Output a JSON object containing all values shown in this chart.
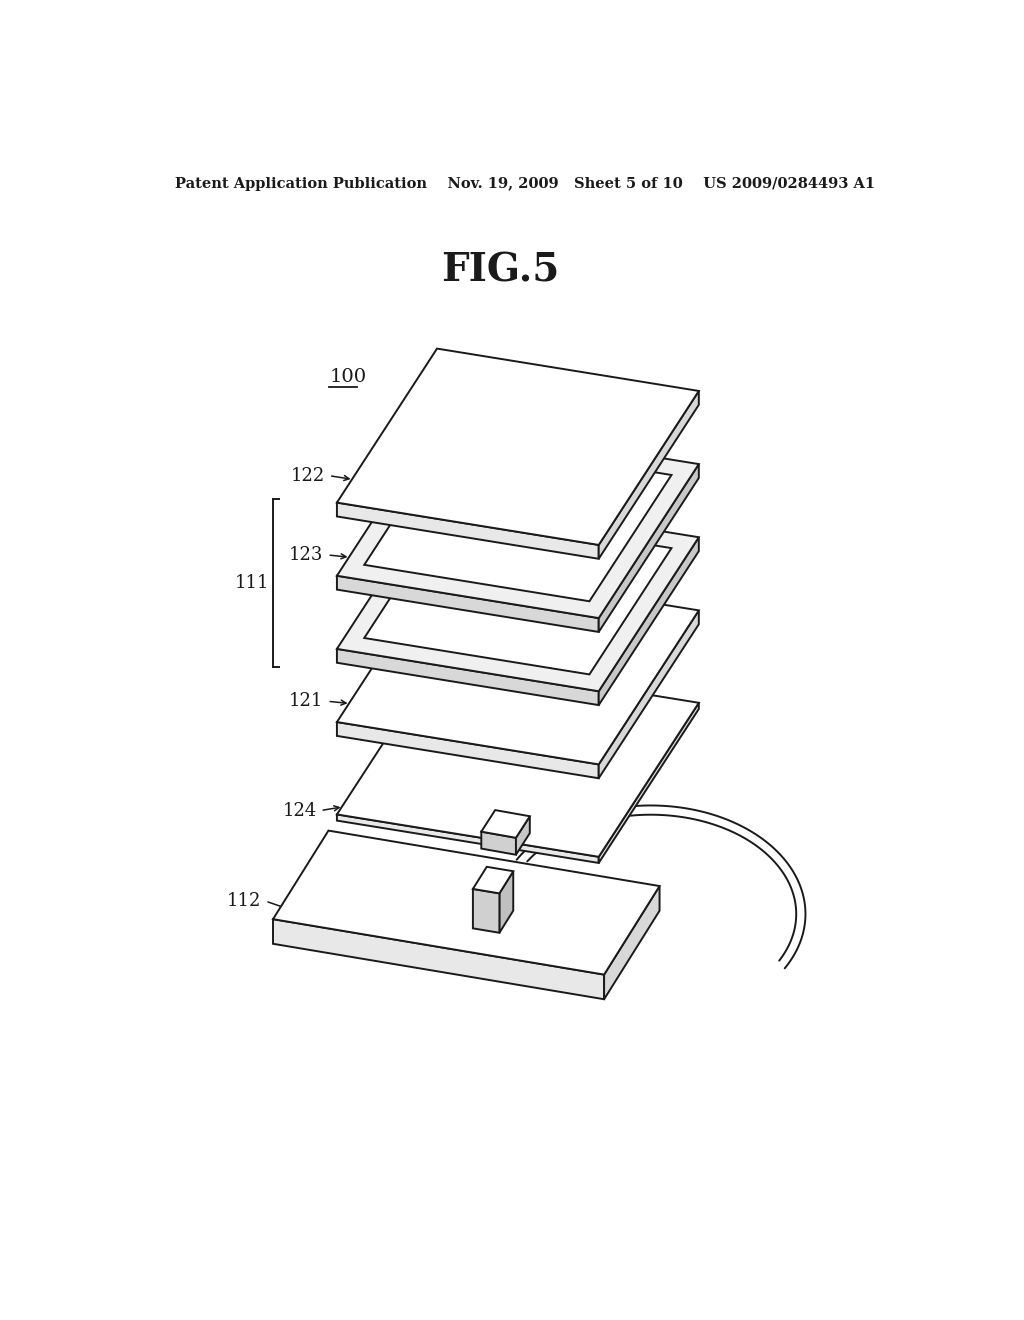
{
  "bg_color": "#ffffff",
  "line_color": "#1a1a1a",
  "title": "FIG.5",
  "header": "Patent Application Publication    Nov. 19, 2009   Sheet 5 of 10    US 2009/0284493 A1",
  "label_100": "100",
  "label_111": "111",
  "label_112": "112",
  "label_121": "121",
  "label_122": "122",
  "label_123": "123",
  "label_124": "124",
  "lw": 1.4
}
